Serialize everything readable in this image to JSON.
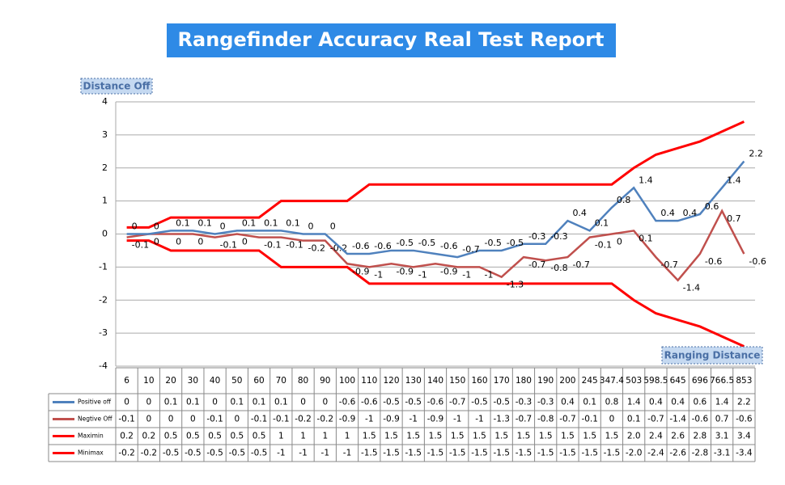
{
  "chart_data": {
    "type": "line",
    "title": "Rangefinder Accuracy Real Test Report",
    "y_label": "Distance Off",
    "x_label": "Ranging Distance",
    "categories": [
      "6",
      "10",
      "20",
      "30",
      "40",
      "50",
      "60",
      "70",
      "80",
      "90",
      "100",
      "110",
      "120",
      "130",
      "140",
      "150",
      "160",
      "170",
      "180",
      "190",
      "200",
      "245",
      "347.4",
      "503",
      "598.5",
      "645",
      "696",
      "766.5",
      "853"
    ],
    "series": [
      {
        "name": "Positive off",
        "color": "#4f81bd",
        "data_labels": true,
        "values": [
          0,
          0,
          0.1,
          0.1,
          0,
          0.1,
          0.1,
          0.1,
          0,
          0,
          -0.6,
          -0.6,
          -0.5,
          -0.5,
          -0.6,
          -0.7,
          -0.5,
          -0.5,
          -0.3,
          -0.3,
          0.4,
          0.1,
          0.8,
          1.4,
          0.4,
          0.4,
          0.6,
          1.4,
          2.2
        ]
      },
      {
        "name": "Negtive Off",
        "color": "#c0504d",
        "data_labels": true,
        "values": [
          -0.1,
          0,
          0,
          0,
          -0.1,
          0,
          -0.1,
          -0.1,
          -0.2,
          -0.2,
          -0.9,
          -1,
          -0.9,
          -1,
          -0.9,
          -1,
          -1,
          -1.3,
          -0.7,
          -0.8,
          -0.7,
          -0.1,
          0,
          0.1,
          -0.7,
          -1.4,
          -0.6,
          0.7,
          -0.6
        ]
      },
      {
        "name": "Maximin",
        "color": "#ff0000",
        "data_labels": false,
        "values": [
          0.2,
          0.2,
          0.5,
          0.5,
          0.5,
          0.5,
          0.5,
          1,
          1,
          1,
          1,
          1.5,
          1.5,
          1.5,
          1.5,
          1.5,
          1.5,
          1.5,
          1.5,
          1.5,
          1.5,
          1.5,
          1.5,
          2,
          2.4,
          2.6,
          2.8,
          3.1,
          3.4
        ],
        "value_labels": [
          "0.2",
          "0.2",
          "0.5",
          "0.5",
          "0.5",
          "0.5",
          "0.5",
          "1",
          "1",
          "1",
          "1",
          "1.5",
          "1.5",
          "1.5",
          "1.5",
          "1.5",
          "1.5",
          "1.5",
          "1.5",
          "1.5",
          "1.5",
          "1.5",
          "1.5",
          "2.0",
          "2.4",
          "2.6",
          "2.8",
          "3.1",
          "3.4"
        ]
      },
      {
        "name": "Minimax",
        "color": "#ff0000",
        "data_labels": false,
        "values": [
          -0.2,
          -0.2,
          -0.5,
          -0.5,
          -0.5,
          -0.5,
          -0.5,
          -1,
          -1,
          -1,
          -1,
          -1.5,
          -1.5,
          -1.5,
          -1.5,
          -1.5,
          -1.5,
          -1.5,
          -1.5,
          -1.5,
          -1.5,
          -1.5,
          -1.5,
          -2,
          -2.4,
          -2.6,
          -2.8,
          -3.1,
          -3.4
        ],
        "value_labels": [
          "-0.2",
          "-0.2",
          "-0.5",
          "-0.5",
          "-0.5",
          "-0.5",
          "-0.5",
          "-1",
          "-1",
          "-1",
          "-1",
          "-1.5",
          "-1.5",
          "-1.5",
          "-1.5",
          "-1.5",
          "-1.5",
          "-1.5",
          "-1.5",
          "-1.5",
          "-1.5",
          "-1.5",
          "-1.5",
          "-2.0",
          "-2.4",
          "-2.6",
          "-2.8",
          "-3.1",
          "-3.4"
        ]
      }
    ],
    "ylim": [
      -4,
      4
    ],
    "yticks": [
      -4,
      -3,
      -2,
      -1,
      0,
      1,
      2,
      3,
      4
    ],
    "grid": true
  }
}
